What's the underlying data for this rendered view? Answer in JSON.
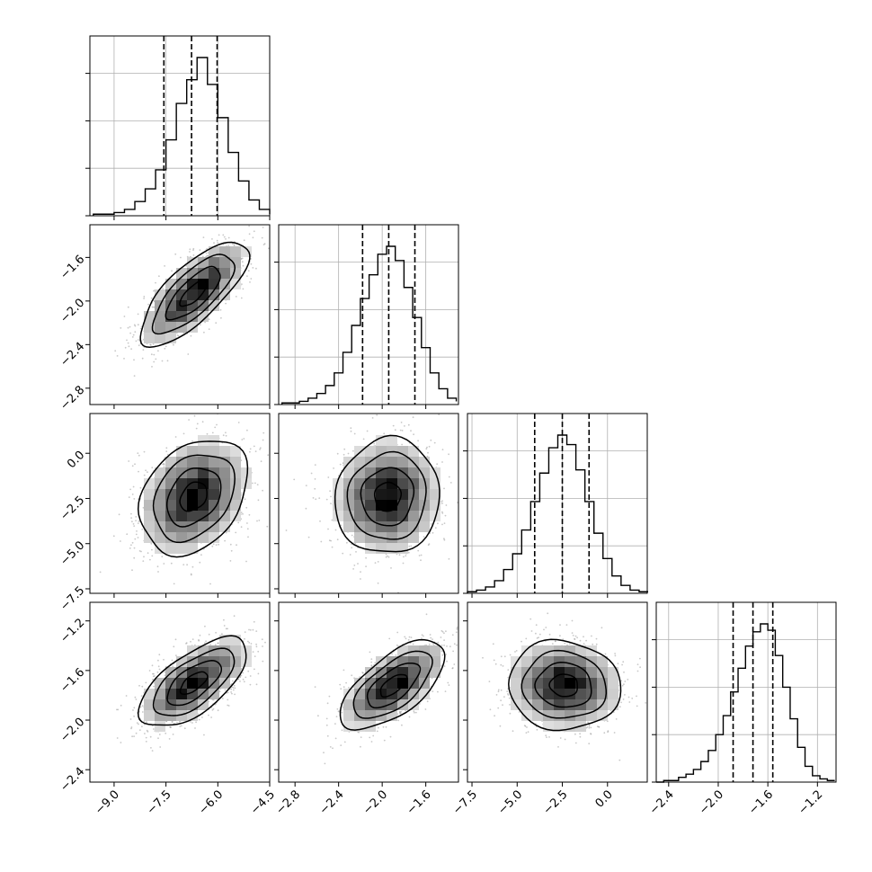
{
  "chart_data": {
    "type": "corner",
    "parameters": 4,
    "grid": true,
    "axes": [
      {
        "ticks": [
          -9.0,
          -7.5,
          -6.0,
          -4.5
        ],
        "tick_labels": [
          "−9.0",
          "−7.5",
          "−6.0",
          "−4.5"
        ],
        "range": [
          -9.7,
          -4.5
        ]
      },
      {
        "ticks": [
          -2.8,
          -2.4,
          -2.0,
          -1.6
        ],
        "tick_labels": [
          "−2.8",
          "−2.4",
          "−2.0",
          "−1.6"
        ],
        "range": [
          -2.95,
          -1.3
        ]
      },
      {
        "ticks": [
          -7.5,
          -5.0,
          -2.5,
          0.0
        ],
        "tick_labels": [
          "−7.5",
          "−5.0",
          "−2.5",
          "0.0"
        ],
        "range": [
          -7.75,
          2.2
        ]
      },
      {
        "ticks": [
          -2.4,
          -2.0,
          -1.6,
          -1.2
        ],
        "tick_labels": [
          "−2.4",
          "−2.0",
          "−1.6",
          "−1.2"
        ],
        "range": [
          -2.5,
          -1.05
        ]
      }
    ],
    "marginals": [
      {
        "mean": -6.79,
        "sd": 0.78,
        "quantiles": [
          -7.56,
          -6.76,
          -6.02
        ],
        "bins": [
          -9.6,
          -9.3,
          -9.0,
          -8.7,
          -8.4,
          -8.1,
          -7.8,
          -7.5,
          -7.2,
          -6.9,
          -6.6,
          -6.3,
          -6.0,
          -5.7,
          -5.4,
          -5.1,
          -4.8,
          -4.5
        ],
        "counts": [
          0.01,
          0.01,
          0.02,
          0.04,
          0.09,
          0.17,
          0.29,
          0.48,
          0.71,
          0.86,
          1.0,
          0.83,
          0.62,
          0.4,
          0.22,
          0.1,
          0.04,
          0.01
        ],
        "y_gridlines": [
          0.0,
          0.3,
          0.6,
          0.9
        ]
      },
      {
        "mean": -1.94,
        "sd": 0.24,
        "quantiles": [
          -2.18,
          -1.94,
          -1.7
        ],
        "bins": [
          -2.92,
          -2.84,
          -2.76,
          -2.68,
          -2.6,
          -2.52,
          -2.44,
          -2.36,
          -2.28,
          -2.2,
          -2.12,
          -2.04,
          -1.96,
          -1.88,
          -1.8,
          -1.72,
          -1.64,
          -1.56,
          -1.48,
          -1.4,
          -1.32
        ],
        "counts": [
          0.01,
          0.01,
          0.02,
          0.04,
          0.07,
          0.12,
          0.2,
          0.33,
          0.5,
          0.67,
          0.82,
          0.95,
          1.0,
          0.91,
          0.74,
          0.55,
          0.36,
          0.2,
          0.1,
          0.04,
          0.02
        ],
        "y_gridlines": [
          0.0,
          0.3,
          0.6,
          0.9
        ]
      },
      {
        "mean": -2.55,
        "sd": 1.55,
        "quantiles": [
          -4.03,
          -2.5,
          -1.02
        ],
        "bins": [
          -7.75,
          -7.25,
          -6.75,
          -6.25,
          -5.75,
          -5.25,
          -4.75,
          -4.25,
          -3.75,
          -3.25,
          -2.75,
          -2.25,
          -1.75,
          -1.25,
          -0.75,
          -0.25,
          0.25,
          0.75,
          1.25,
          1.75,
          2.25
        ],
        "counts": [
          0.01,
          0.02,
          0.04,
          0.08,
          0.15,
          0.25,
          0.4,
          0.58,
          0.76,
          0.92,
          1.0,
          0.94,
          0.78,
          0.58,
          0.38,
          0.22,
          0.11,
          0.05,
          0.02,
          0.01
        ],
        "y_gridlines": [
          0.0,
          0.3,
          0.6,
          0.9
        ]
      },
      {
        "mean": -1.72,
        "sd": 0.18,
        "quantiles": [
          -1.88,
          -1.72,
          -1.56
        ],
        "bins": [
          -2.5,
          -2.44,
          -2.38,
          -2.32,
          -2.26,
          -2.2,
          -2.14,
          -2.08,
          -2.02,
          -1.96,
          -1.9,
          -1.84,
          -1.78,
          -1.72,
          -1.66,
          -1.6,
          -1.54,
          -1.48,
          -1.42,
          -1.36,
          -1.3,
          -1.24,
          -1.18,
          -1.12,
          -1.06
        ],
        "counts": [
          0.0,
          0.01,
          0.01,
          0.03,
          0.05,
          0.08,
          0.13,
          0.2,
          0.3,
          0.42,
          0.57,
          0.72,
          0.86,
          0.95,
          1.0,
          0.96,
          0.8,
          0.6,
          0.4,
          0.22,
          0.1,
          0.04,
          0.02,
          0.01
        ],
        "y_gridlines": [
          0.0,
          0.3,
          0.6,
          0.9
        ]
      }
    ],
    "joints": [
      {
        "x_param": 0,
        "y_param": 1,
        "center": [
          -6.7,
          -1.93
        ],
        "sd": [
          0.78,
          0.24
        ],
        "rho": 0.75
      },
      {
        "x_param": 0,
        "y_param": 2,
        "center": [
          -6.7,
          -2.4
        ],
        "sd": [
          0.78,
          1.6
        ],
        "rho": 0.3
      },
      {
        "x_param": 1,
        "y_param": 2,
        "center": [
          -1.95,
          -2.4
        ],
        "sd": [
          0.24,
          1.6
        ],
        "rho": 0.05
      },
      {
        "x_param": 0,
        "y_param": 3,
        "center": [
          -6.7,
          -1.7
        ],
        "sd": [
          0.78,
          0.18
        ],
        "rho": 0.65
      },
      {
        "x_param": 1,
        "y_param": 3,
        "center": [
          -1.9,
          -1.72
        ],
        "sd": [
          0.24,
          0.18
        ],
        "rho": 0.65
      },
      {
        "x_param": 2,
        "y_param": 3,
        "center": [
          -2.4,
          -1.72
        ],
        "sd": [
          1.55,
          0.18
        ],
        "rho": -0.05
      }
    ],
    "contour_levels_sigma": [
      0.5,
      1.0,
      1.5,
      2.0
    ],
    "colors": {
      "line": "#000000",
      "scatter": "#9a9a9a",
      "grid": "#b0b0b0",
      "frame": "#000000"
    }
  }
}
